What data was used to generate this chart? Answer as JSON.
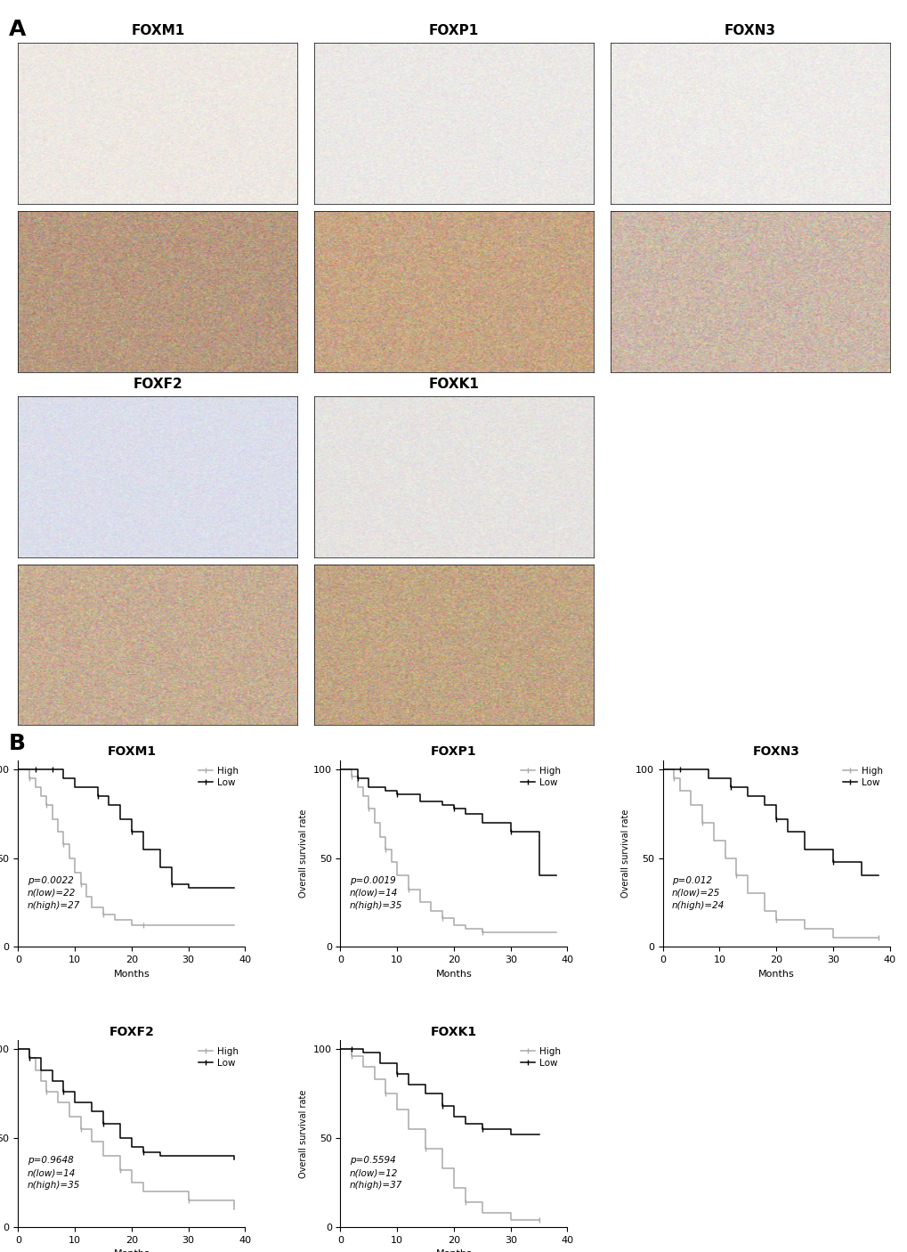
{
  "panel_A_label": "A",
  "panel_B_label": "B",
  "row1_titles": [
    "FOXM1",
    "FOXP1",
    "FOXN3"
  ],
  "row2_titles": [
    "FOXF2",
    "FOXK1"
  ],
  "row_labels": [
    "Low",
    "High"
  ],
  "survival_plots": [
    {
      "title": "FOXM1",
      "p_value": "p=0.0022",
      "n_low": "n(low)=22",
      "n_high": "n(high)=27",
      "high_times": [
        0,
        2,
        3,
        4,
        5,
        6,
        7,
        8,
        9,
        10,
        11,
        12,
        13,
        15,
        17,
        20,
        22,
        25,
        38
      ],
      "high_survival": [
        100,
        95,
        90,
        85,
        80,
        72,
        65,
        58,
        50,
        42,
        35,
        28,
        22,
        18,
        15,
        12,
        12,
        12,
        12
      ],
      "low_times": [
        0,
        3,
        4,
        5,
        6,
        8,
        10,
        14,
        16,
        18,
        20,
        22,
        25,
        27,
        30,
        38
      ],
      "low_survival": [
        100,
        100,
        100,
        100,
        100,
        95,
        90,
        85,
        80,
        72,
        65,
        55,
        45,
        35,
        33,
        33
      ]
    },
    {
      "title": "FOXP1",
      "p_value": "p=0.0019",
      "n_low": "n(low)=14",
      "n_high": "n(high)=35",
      "high_times": [
        0,
        2,
        3,
        4,
        5,
        6,
        7,
        8,
        9,
        10,
        12,
        14,
        16,
        18,
        20,
        22,
        25,
        38
      ],
      "high_survival": [
        100,
        96,
        90,
        85,
        78,
        70,
        62,
        55,
        48,
        40,
        32,
        25,
        20,
        16,
        12,
        10,
        8,
        8
      ],
      "low_times": [
        0,
        3,
        5,
        8,
        10,
        14,
        18,
        20,
        22,
        25,
        30,
        35,
        38
      ],
      "low_survival": [
        100,
        95,
        90,
        88,
        86,
        82,
        80,
        78,
        75,
        70,
        65,
        40,
        40
      ]
    },
    {
      "title": "FOXN3",
      "p_value": "p=0.012",
      "n_low": "n(low)=25",
      "n_high": "n(high)=24",
      "high_times": [
        0,
        2,
        3,
        5,
        7,
        9,
        11,
        13,
        15,
        18,
        20,
        25,
        30,
        38
      ],
      "high_survival": [
        100,
        95,
        88,
        80,
        70,
        60,
        50,
        40,
        30,
        20,
        15,
        10,
        5,
        5
      ],
      "low_times": [
        0,
        3,
        5,
        8,
        12,
        15,
        18,
        20,
        22,
        25,
        30,
        35,
        38
      ],
      "low_survival": [
        100,
        100,
        100,
        95,
        90,
        85,
        80,
        72,
        65,
        55,
        48,
        40,
        40
      ]
    },
    {
      "title": "FOXF2",
      "p_value": "p=0.9648",
      "n_low": "n(low)=14",
      "n_high": "n(high)=35",
      "high_times": [
        0,
        2,
        3,
        4,
        5,
        7,
        9,
        11,
        13,
        15,
        18,
        20,
        22,
        30,
        38
      ],
      "high_survival": [
        100,
        95,
        88,
        82,
        76,
        70,
        62,
        55,
        48,
        40,
        32,
        25,
        20,
        15,
        10
      ],
      "low_times": [
        0,
        2,
        4,
        6,
        8,
        10,
        13,
        15,
        18,
        20,
        22,
        25,
        38
      ],
      "low_survival": [
        100,
        95,
        88,
        82,
        76,
        70,
        65,
        58,
        50,
        45,
        42,
        40,
        38
      ]
    },
    {
      "title": "FOXK1",
      "p_value": "p=0.5594",
      "n_low": "n(low)=12",
      "n_high": "n(high)=37",
      "high_times": [
        0,
        2,
        4,
        6,
        8,
        10,
        12,
        15,
        18,
        20,
        22,
        25,
        30,
        35
      ],
      "high_survival": [
        100,
        96,
        90,
        83,
        75,
        66,
        55,
        44,
        33,
        22,
        14,
        8,
        4,
        4
      ],
      "low_times": [
        0,
        2,
        4,
        7,
        10,
        12,
        15,
        18,
        20,
        22,
        25,
        30,
        35
      ],
      "low_survival": [
        100,
        100,
        98,
        92,
        86,
        80,
        75,
        68,
        62,
        58,
        55,
        52,
        52
      ]
    }
  ],
  "high_color": "#aaaaaa",
  "low_color": "#000000",
  "ylabel": "Overall survival rate",
  "xlabel": "Months",
  "xlim": [
    0,
    40
  ],
  "ylim": [
    0,
    105
  ],
  "yticks": [
    0,
    50,
    100
  ],
  "xticks": [
    0,
    10,
    20,
    30,
    40
  ]
}
